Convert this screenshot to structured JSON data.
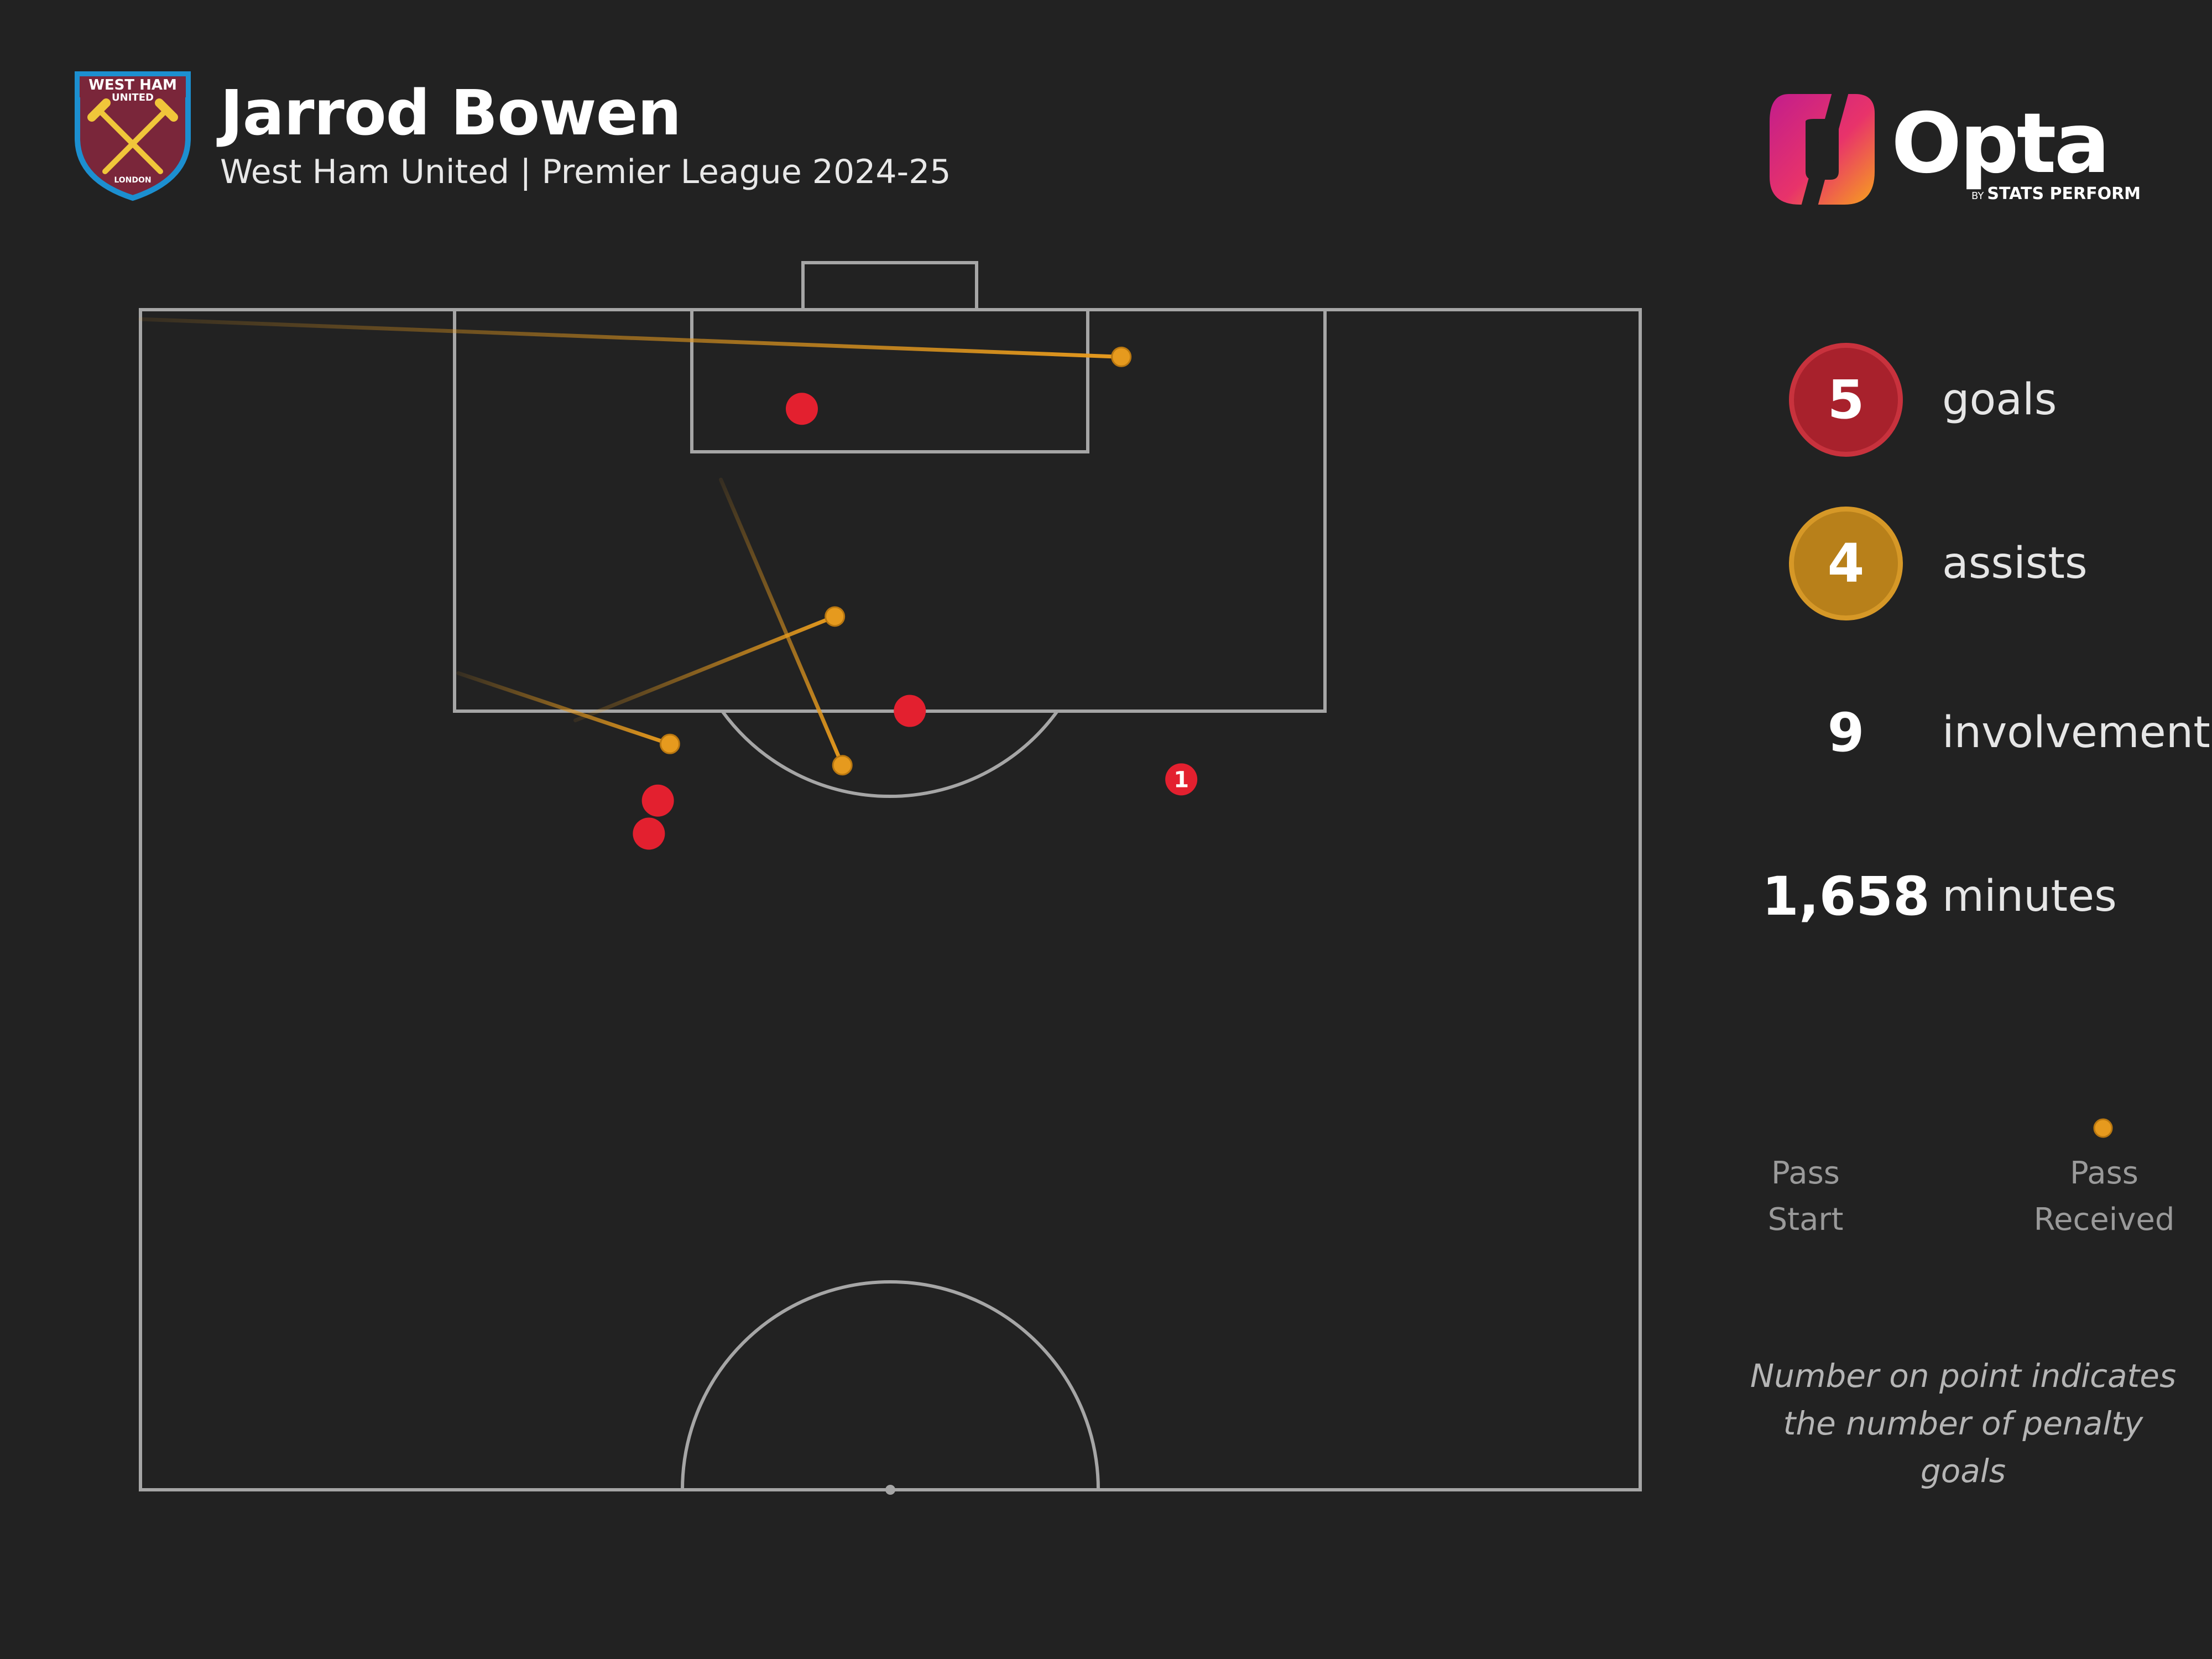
{
  "header": {
    "title": "Jarrod Bowen",
    "subtitle": "West Ham United | Premier League 2024-25"
  },
  "crest": {
    "name": "west-ham-crest",
    "top_text": "WEST HAM",
    "mid_text": "UNITED",
    "bottom_text": "LONDON"
  },
  "brand": {
    "name": "Opta",
    "by": "BY",
    "sub": "STATS PERFORM"
  },
  "stats": {
    "goals": {
      "value": "5",
      "label": "goals"
    },
    "assists": {
      "value": "4",
      "label": "assists"
    },
    "involvements": {
      "value": "9",
      "label": "involvements"
    },
    "minutes": {
      "value": "1,658",
      "label": "minutes"
    }
  },
  "legend": {
    "start_label": "Pass\nStart",
    "end_label": "Pass\nReceived"
  },
  "note": "Number on point indicates\nthe number of penalty goals",
  "colors": {
    "background": "#222222",
    "pitch_lines": "#a6a6a6",
    "goal": "#e3202f",
    "assist": "#e69a1e",
    "goals_circle": "#a8212c",
    "assists_circle": "#b8801a"
  },
  "chart_data": {
    "type": "scatter",
    "title": "Jarrod Bowen",
    "pitch": "half, attacking goal at top",
    "goals": [
      {
        "x": 44.1,
        "y": 95.8,
        "penalty_goals": 0
      },
      {
        "x": 51.3,
        "y": 83.0,
        "penalty_goals": 0
      },
      {
        "x": 69.4,
        "y": 80.1,
        "penalty_goals": 1
      },
      {
        "x": 33.9,
        "y": 77.8,
        "penalty_goals": 0
      },
      {
        "x": 34.5,
        "y": 79.2,
        "penalty_goals": 0
      }
    ],
    "assists": [
      {
        "start": {
          "x": 0,
          "y": 99.6
        },
        "end": {
          "x": 65.4,
          "y": 98.0
        }
      },
      {
        "start": {
          "x": 29.0,
          "y": 82.6
        },
        "end": {
          "x": 46.3,
          "y": 87.0
        }
      },
      {
        "start": {
          "x": 38.7,
          "y": 92.8
        },
        "end": {
          "x": 46.8,
          "y": 80.7
        }
      },
      {
        "start": {
          "x": 21.2,
          "y": 84.6
        },
        "end": {
          "x": 35.3,
          "y": 81.6
        }
      }
    ]
  }
}
